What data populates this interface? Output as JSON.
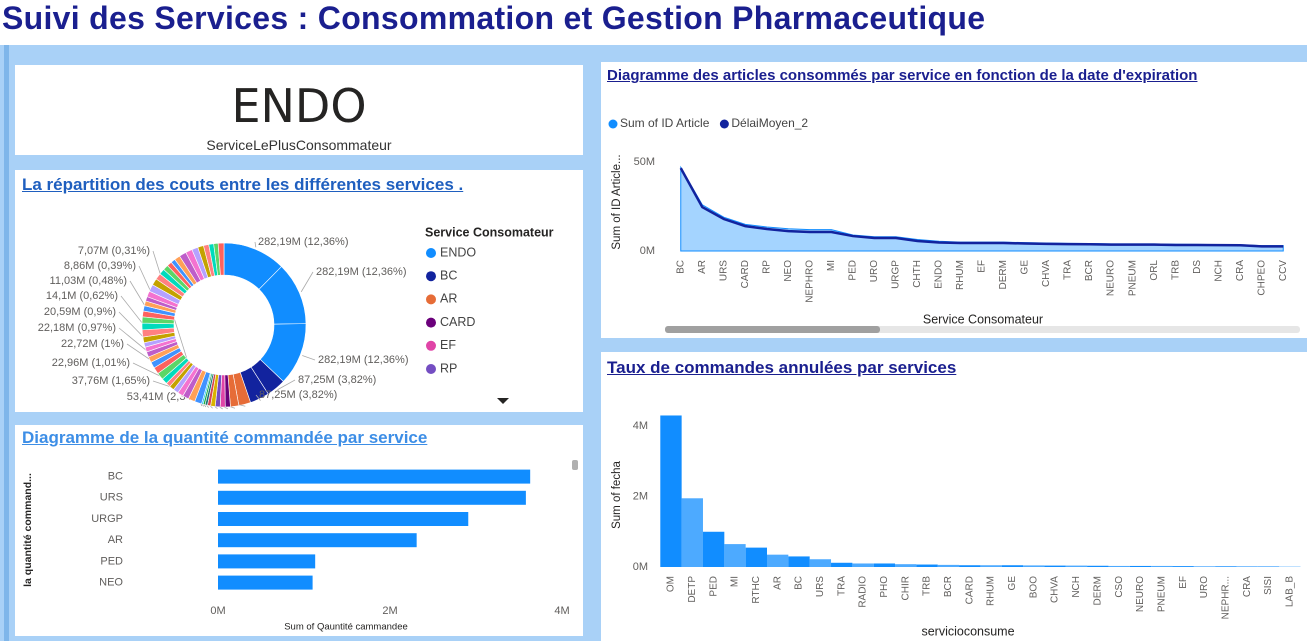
{
  "header": {
    "title": "Suivi des Services : Consommation et Gestion Pharmaceutique"
  },
  "card": {
    "value": "ENDO",
    "label": "ServiceLePlusConsommateur"
  },
  "chart_data": [
    {
      "type": "donut",
      "title": "La répartition des couts entre les différentes services .",
      "legend_title": "Service Consomateur",
      "legend": [
        "ENDO",
        "BC",
        "AR",
        "CARD",
        "EF",
        "RP"
      ],
      "legend_colors": [
        "#118dff",
        "#12239e",
        "#e66c37",
        "#6b007b",
        "#e044a7",
        "#744ec2"
      ],
      "values": [
        282190000,
        282190000,
        282190000,
        87250000,
        87250000,
        53410000,
        37760000,
        22960000,
        22720000,
        22180000,
        20590000,
        14100000,
        11030000,
        8860000,
        7070000,
        32000000,
        30000000,
        28000000,
        26000000,
        24000000,
        22000000,
        20000000,
        26000000,
        32000000,
        30000000,
        28000000,
        26000000,
        24000000,
        22000000,
        20000000,
        26000000,
        32000000,
        30000000,
        28000000,
        26000000,
        24000000,
        22000000,
        20000000,
        26000000,
        32000000,
        30000000,
        28000000,
        26000000,
        24000000,
        22000000,
        20000000,
        26000000,
        32000000,
        30000000,
        28000000,
        26000000,
        24000000,
        22000000,
        20000000,
        26000000
      ],
      "value_labels": [
        "282,19M (12,36%)",
        "282,19M (12,36%)",
        "282,19M (12,36%)",
        "87,25M (3,82%)",
        "87,25M (3,82%)",
        "53,41M (2,34%)",
        "37,76M (1,65%)",
        "22,96M (1,01%)",
        "22,72M (1%)",
        "22,18M (0,97%)",
        "20,59M (0,9%)",
        "14,1M (0,62%)",
        "11,03M (0,48%)",
        "8,86M (0,39%)",
        "7,07M (0,31%)",
        null,
        null,
        null,
        null,
        null,
        null,
        null,
        null,
        null,
        null,
        null,
        null,
        null,
        null,
        null,
        null,
        null,
        null,
        null,
        null,
        null,
        null,
        null,
        null,
        null,
        null,
        null,
        null,
        null,
        null,
        null,
        null,
        null,
        null,
        null,
        null,
        null,
        null,
        null,
        null
      ],
      "colors": [
        "#118dff",
        "#118dff",
        "#118dff",
        "#12239e",
        "#12239e",
        "#e66c37",
        "#e66c37",
        "#6b007b",
        "#e044a7",
        "#744ec2",
        "#d9b300",
        "#d64550",
        "#197278",
        "#1aab40",
        "#15c6f4",
        "#4092ff",
        "#ffa058",
        "#be5dc9",
        "#f472d0",
        "#b5a1ff",
        "#c4a200",
        "#ff8080",
        "#00dbbc",
        "#5bd667",
        "#fd625e",
        "#4092ff",
        "#ffa058",
        "#be5dc9",
        "#f472d0",
        "#b5a1ff",
        "#c4a200",
        "#ff8080",
        "#00dbbc",
        "#5bd667",
        "#fd625e",
        "#4092ff",
        "#ffa058",
        "#be5dc9",
        "#f472d0",
        "#b5a1ff",
        "#c4a200",
        "#ff8080",
        "#00dbbc",
        "#5bd667",
        "#fd625e",
        "#4092ff",
        "#ffa058",
        "#be5dc9",
        "#f472d0",
        "#b5a1ff",
        "#c4a200",
        "#ff8080",
        "#00dbbc",
        "#5bd667",
        "#fd625e"
      ]
    },
    {
      "type": "hbar",
      "title": "Diagramme de la quantité commandée par service",
      "categories": [
        "BC",
        "URS",
        "URGP",
        "AR",
        "PED",
        "NEO"
      ],
      "values": [
        3630000,
        3580000,
        2910000,
        2310000,
        1130000,
        1100000
      ],
      "color": "#118dff",
      "xlim": [
        0,
        4000000
      ],
      "xticks": [
        {
          "value": 0,
          "label": "0M"
        },
        {
          "value": 2000000,
          "label": "2M"
        },
        {
          "value": 4000000,
          "label": "4M"
        }
      ],
      "xlabel": "Sum of Qauntité cammandee",
      "ylabel": "la quantité command...",
      "grid": false
    },
    {
      "type": "line",
      "title": "Diagramme des articles consommés par service en fonction de la date d'expiration",
      "categories": [
        "BC",
        "AR",
        "URS",
        "CARD",
        "RP",
        "NEO",
        "NEPHRO",
        "MI",
        "PED",
        "URO",
        "URGP",
        "CHTH",
        "ENDO",
        "RHUM",
        "EF",
        "DERM",
        "GE",
        "CHVA",
        "TRA",
        "BCR",
        "NEURO",
        "PNEUM",
        "ORL",
        "TRB",
        "DS",
        "NCH",
        "CRA",
        "CHPEO",
        "CCV"
      ],
      "series": [
        {
          "name": "Sum of ID Article",
          "color": "#118dff",
          "kind": "area",
          "values": [
            47000000,
            26000000,
            19000000,
            15000000,
            13500000,
            12500000,
            12000000,
            12000000,
            9000000,
            8000000,
            8000000,
            6500000,
            5500000,
            5000000,
            5000000,
            5000000,
            4700000,
            4500000,
            4300000,
            4200000,
            4000000,
            4000000,
            4000000,
            3800000,
            3700000,
            3600000,
            3500000,
            3000000,
            3000000
          ]
        },
        {
          "name": "DélaiMoyen_2",
          "color": "#12239e",
          "kind": "line",
          "values": [
            46600000,
            24700000,
            18000000,
            14000000,
            12400000,
            11200000,
            10700000,
            10700000,
            8400000,
            7300000,
            7300000,
            5600000,
            4800000,
            4500000,
            4500000,
            4500000,
            4200000,
            4000000,
            3900000,
            3800000,
            3600000,
            3600000,
            3600000,
            3400000,
            3400000,
            3300000,
            3200000,
            2600000,
            2600000
          ]
        }
      ],
      "ylim": [
        0,
        54000000
      ],
      "yticks": [
        {
          "value": 0,
          "label": "0M"
        },
        {
          "value": 50000000,
          "label": "50M"
        }
      ],
      "xlabel": "Service Consomateur",
      "ylabel": "Sum of ID Article...",
      "grid": false
    },
    {
      "type": "column",
      "title": "Taux de commandes annulées par services",
      "categories": [
        "OM",
        "DETP",
        "PED",
        "MI",
        "RTHC",
        "AR",
        "BC",
        "URS",
        "TRA",
        "RADIO",
        "PHO",
        "CHIR",
        "TRB",
        "BCR",
        "CARD",
        "RHUM",
        "GE",
        "BOO",
        "CHVA",
        "NCH",
        "DERM",
        "CSO",
        "NEURO",
        "PNEUM",
        "EF",
        "URO",
        "NEPHR...",
        "CRA",
        "SISI",
        "LAB_B"
      ],
      "values": [
        4300000,
        1950000,
        1000000,
        650000,
        550000,
        350000,
        300000,
        220000,
        120000,
        100000,
        100000,
        80000,
        70000,
        60000,
        50000,
        50000,
        50000,
        45000,
        40000,
        40000,
        35000,
        30000,
        30000,
        30000,
        25000,
        20000,
        20000,
        20000,
        15000,
        10000
      ],
      "color": "#118dff",
      "ylim": [
        0,
        4200000
      ],
      "yticks": [
        {
          "value": 0,
          "label": "0M"
        },
        {
          "value": 2000000,
          "label": "2M"
        },
        {
          "value": 4000000,
          "label": "4M"
        }
      ],
      "xlabel": "servicioconsume",
      "ylabel": "Sum of fecha",
      "grid": false
    }
  ]
}
